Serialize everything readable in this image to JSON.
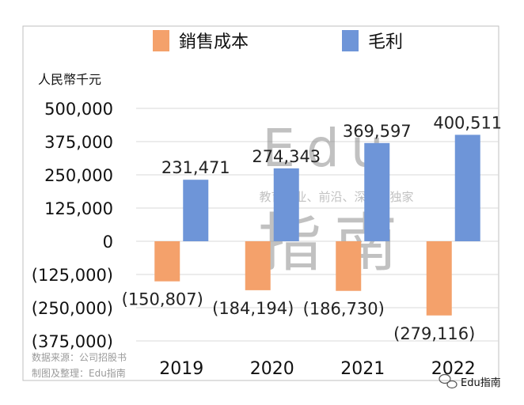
{
  "chart_data": {
    "type": "bar",
    "unit_label": "人民幣千元",
    "categories": [
      "2019",
      "2020",
      "2021",
      "2022"
    ],
    "series": [
      {
        "name": "銷售成本",
        "color": "#F4A16B",
        "values": [
          -150807,
          -184194,
          -186730,
          -279116
        ],
        "labels": [
          "(150,807)",
          "(184,194)",
          "(186,730)",
          "(279,116)"
        ]
      },
      {
        "name": "毛利",
        "color": "#6E95D8",
        "values": [
          231471,
          274343,
          369597,
          400511
        ],
        "labels": [
          "231,471",
          "274,343",
          "369,597",
          "400,511"
        ]
      }
    ],
    "ylim": [
      -375000,
      500000
    ],
    "yticks": [
      500000,
      375000,
      250000,
      125000,
      0,
      -125000,
      -250000,
      -375000
    ],
    "ytick_labels": [
      "500,000",
      "375,000",
      "250,000",
      "125,000",
      "0",
      "(125,000)",
      "(250,000)",
      "(375,000)"
    ],
    "legend_position": "top",
    "grid": true
  },
  "watermark": {
    "latin": "Edu",
    "cjk": "指南",
    "tagline": "教育行业、前沿、深度、独家"
  },
  "source_note": {
    "line1": "数据来源：公司招股书",
    "line2": "制图及整理：Edu指南"
  },
  "brand": {
    "text": "Edu指南"
  }
}
